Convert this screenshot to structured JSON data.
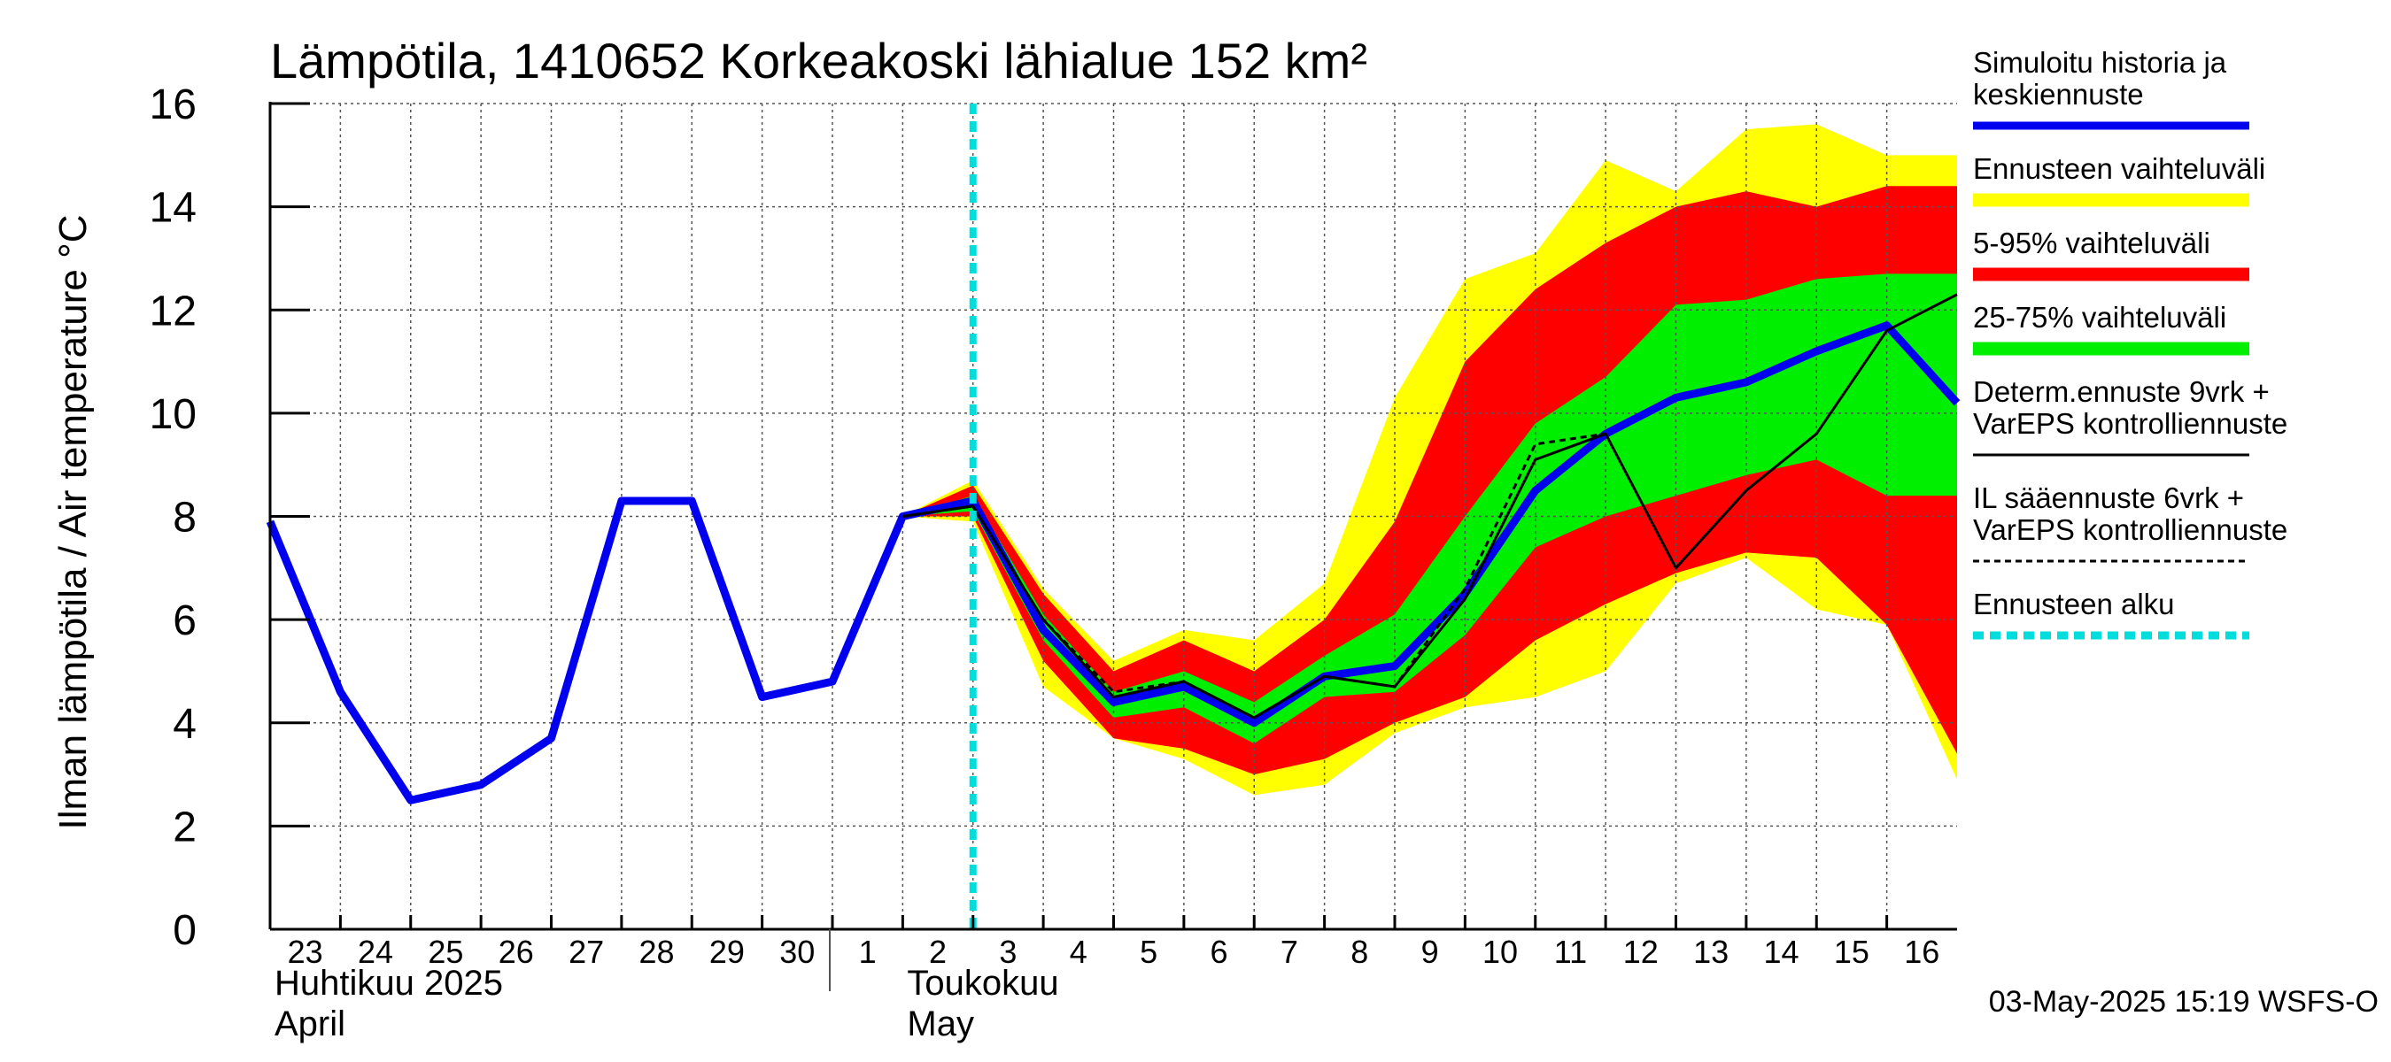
{
  "chart_data": {
    "type": "line",
    "title": "Lämpötila, 1410652 Korkeakoski lähialue 152 km²",
    "ylabel": "Ilman lämpötila / Air temperature   °C",
    "ylim": [
      0,
      16
    ],
    "yticks": [
      0,
      2,
      4,
      6,
      8,
      10,
      12,
      14,
      16
    ],
    "xlim": [
      0,
      24
    ],
    "day_ticks": [
      {
        "x": 0,
        "label": "23"
      },
      {
        "x": 1,
        "label": "24"
      },
      {
        "x": 2,
        "label": "25"
      },
      {
        "x": 3,
        "label": "26"
      },
      {
        "x": 4,
        "label": "27"
      },
      {
        "x": 5,
        "label": "28"
      },
      {
        "x": 6,
        "label": "29"
      },
      {
        "x": 7,
        "label": "30"
      },
      {
        "x": 8,
        "label": "1"
      },
      {
        "x": 9,
        "label": "2"
      },
      {
        "x": 10,
        "label": "3"
      },
      {
        "x": 11,
        "label": "4"
      },
      {
        "x": 12,
        "label": "5"
      },
      {
        "x": 13,
        "label": "6"
      },
      {
        "x": 14,
        "label": "7"
      },
      {
        "x": 15,
        "label": "8"
      },
      {
        "x": 16,
        "label": "9"
      },
      {
        "x": 17,
        "label": "10"
      },
      {
        "x": 18,
        "label": "11"
      },
      {
        "x": 19,
        "label": "12"
      },
      {
        "x": 20,
        "label": "13"
      },
      {
        "x": 21,
        "label": "14"
      },
      {
        "x": 22,
        "label": "15"
      },
      {
        "x": 23,
        "label": "16"
      }
    ],
    "month_labels": [
      {
        "x": 0,
        "fi": "Huhtikuu  2025",
        "en": "April"
      },
      {
        "x": 9,
        "fi": "Toukokuu",
        "en": "May"
      }
    ],
    "month_divider_x": 8,
    "forecast_start_x": 10,
    "bands": [
      {
        "name": "Ennusteen vaihteluväli",
        "color": "#ffff00",
        "x": [
          9,
          10,
          11,
          12,
          13,
          14,
          15,
          16,
          17,
          18,
          19,
          20,
          21,
          22,
          23,
          24
        ],
        "upper": [
          8.0,
          8.7,
          6.6,
          5.2,
          5.8,
          5.6,
          6.7,
          10.3,
          12.6,
          13.1,
          14.9,
          14.3,
          15.5,
          15.6,
          15.0,
          15.0
        ],
        "lower": [
          8.0,
          7.9,
          4.7,
          3.7,
          3.3,
          2.6,
          2.8,
          3.8,
          4.3,
          4.5,
          5.0,
          6.7,
          7.2,
          6.2,
          5.9,
          2.9
        ]
      },
      {
        "name": "5-95% vaihteluväli",
        "color": "#ff0000",
        "x": [
          9,
          10,
          11,
          12,
          13,
          14,
          15,
          16,
          17,
          18,
          19,
          20,
          21,
          22,
          23,
          24
        ],
        "upper": [
          8.0,
          8.6,
          6.5,
          5.0,
          5.6,
          5.0,
          6.0,
          7.9,
          11.0,
          12.4,
          13.3,
          14.0,
          14.3,
          14.0,
          14.4,
          14.4
        ],
        "lower": [
          8.0,
          8.0,
          5.2,
          3.7,
          3.5,
          3.0,
          3.3,
          4.0,
          4.5,
          5.6,
          6.3,
          6.9,
          7.3,
          7.2,
          5.9,
          3.4
        ]
      },
      {
        "name": "25-75% vaihteluväli",
        "color": "#00ee00",
        "x": [
          9,
          10,
          11,
          12,
          13,
          14,
          15,
          16,
          17,
          18,
          19,
          20,
          21,
          22,
          23,
          24
        ],
        "upper": [
          8.0,
          8.4,
          6.1,
          4.6,
          5.0,
          4.4,
          5.3,
          6.1,
          8.0,
          9.8,
          10.7,
          12.1,
          12.2,
          12.6,
          12.7,
          12.7
        ],
        "lower": [
          8.0,
          8.1,
          5.6,
          4.1,
          4.3,
          3.6,
          4.5,
          4.6,
          5.7,
          7.4,
          8.0,
          8.4,
          8.8,
          9.1,
          8.4,
          8.4
        ]
      }
    ],
    "series": [
      {
        "name": "Simuloitu historia ja keskiennuste",
        "color": "#0000ee",
        "style": "thick",
        "x": [
          0,
          1,
          2,
          3,
          4,
          5,
          6,
          7,
          8,
          9,
          10,
          11,
          12,
          13,
          14,
          15,
          16,
          17,
          18,
          19,
          20,
          21,
          22,
          23,
          24
        ],
        "y": [
          7.9,
          4.6,
          2.5,
          2.8,
          3.7,
          8.3,
          8.3,
          4.5,
          4.8,
          8.0,
          8.3,
          5.8,
          4.4,
          4.7,
          4.0,
          4.9,
          5.1,
          6.5,
          8.5,
          9.6,
          10.3,
          10.6,
          11.2,
          11.7,
          10.2
        ]
      },
      {
        "name": "Determ.ennuste 9vrk + VarEPS kontrolliennuste",
        "color": "#000000",
        "style": "solid",
        "x": [
          9,
          10,
          11,
          12,
          13,
          14,
          15,
          16,
          17,
          18,
          19,
          20,
          21,
          22,
          23,
          24
        ],
        "y": [
          8.0,
          8.2,
          6.0,
          4.5,
          4.8,
          4.1,
          4.9,
          4.7,
          6.4,
          9.1,
          9.6,
          7.0,
          8.5,
          9.6,
          11.6,
          12.3
        ]
      },
      {
        "name": "IL sääennuste 6vrk + VarEPS kontrolliennuste",
        "color": "#000000",
        "style": "dashed",
        "x": [
          9,
          10,
          11,
          12,
          13,
          14,
          15,
          16,
          17,
          18,
          19
        ],
        "y": [
          8.0,
          8.2,
          6.0,
          4.6,
          4.8,
          4.1,
          4.9,
          4.7,
          6.6,
          9.4,
          9.6
        ]
      }
    ],
    "legend": {
      "placement": "right",
      "entries": [
        {
          "lines": [
            "Simuloitu historia ja",
            "keskiennuste"
          ],
          "color": "#0000ee",
          "kind": "thick"
        },
        {
          "lines": [
            "Ennusteen vaihteluväli"
          ],
          "color": "#ffff00",
          "kind": "band"
        },
        {
          "lines": [
            "5-95% vaihteluväli"
          ],
          "color": "#ff0000",
          "kind": "band"
        },
        {
          "lines": [
            "25-75% vaihteluväli"
          ],
          "color": "#00ee00",
          "kind": "band"
        },
        {
          "lines": [
            "Determ.ennuste 9vrk +",
            "VarEPS kontrolliennuste"
          ],
          "color": "#000000",
          "kind": "solid"
        },
        {
          "lines": [
            "IL sääennuste 6vrk  +",
            "  VarEPS kontrolliennuste"
          ],
          "color": "#000000",
          "kind": "dashed"
        },
        {
          "lines": [
            "Ennusteen alku"
          ],
          "color": "#00dddd",
          "kind": "cyan-dashed"
        }
      ]
    },
    "footer": "03-May-2025 15:19 WSFS-O",
    "grid": true
  }
}
